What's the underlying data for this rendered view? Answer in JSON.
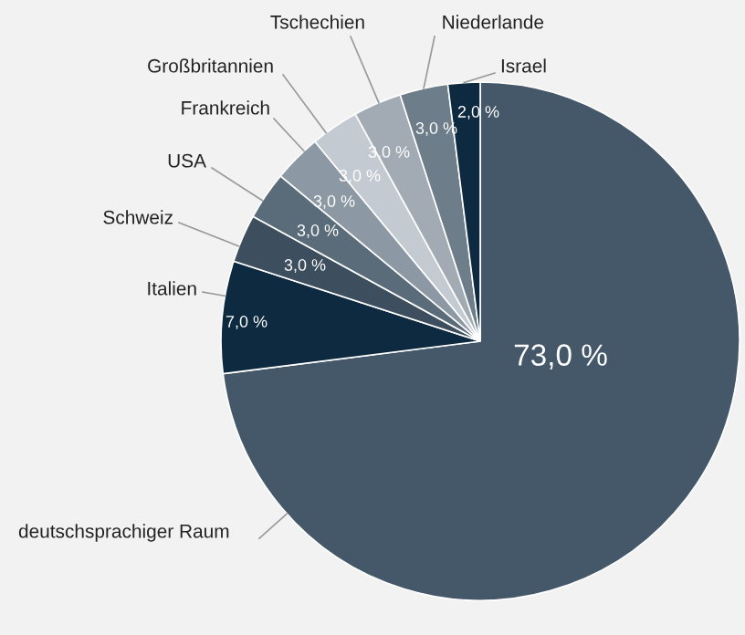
{
  "chart_data": {
    "type": "pie",
    "categories": [
      "deutschsprachiger Raum",
      "Italien",
      "Schweiz",
      "USA",
      "Frankreich",
      "Großbritannien",
      "Tschechien",
      "Niederlande",
      "Israel"
    ],
    "values": [
      73,
      7,
      3,
      3,
      3,
      3,
      3,
      3,
      2
    ],
    "value_labels": [
      "73,0 %",
      "7,0 %",
      "3,0 %",
      "3,0 %",
      "3,0 %",
      "3,0 %",
      "3,0 %",
      "3,0 %",
      "2,0 %"
    ],
    "colors": [
      "#44586a",
      "#0d2a40",
      "#3d4e5e",
      "#5a6b7a",
      "#8c99a5",
      "#c3cad1",
      "#a2abb4",
      "#6e7d8a",
      "#0d2a40"
    ]
  }
}
